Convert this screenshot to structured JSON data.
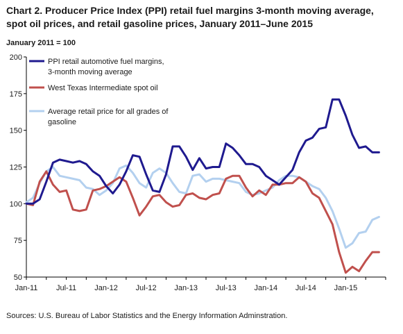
{
  "title": "Chart 2. Producer Price Index (PPI) retail fuel margins 3-month moving average, spot oil prices, and retail gasoline prices, January 2011–June 2015",
  "units_note": "January 2011 = 100",
  "source": "Sources:  U.S. Bureau of Labor Statistics and the Energy Information Adminstration.",
  "chart_data": {
    "type": "line",
    "title": "Chart 2. Producer Price Index (PPI) retail fuel margins 3-month moving average, spot oil prices, and retail gasoline prices, January 2011–June 2015",
    "ylabel": "January 2011 = 100",
    "xlabel": "",
    "ylim": [
      50,
      200
    ],
    "yticks": [
      50,
      75,
      100,
      125,
      150,
      175,
      200
    ],
    "x_tick_labels": [
      "Jan-11",
      "Jul-11",
      "Jan-12",
      "Jul-12",
      "Jan-13",
      "Jul-13",
      "Jan-14",
      "Jul-14",
      "Jan-15"
    ],
    "x": [
      "2011-01",
      "2011-02",
      "2011-03",
      "2011-04",
      "2011-05",
      "2011-06",
      "2011-07",
      "2011-08",
      "2011-09",
      "2011-10",
      "2011-11",
      "2011-12",
      "2012-01",
      "2012-02",
      "2012-03",
      "2012-04",
      "2012-05",
      "2012-06",
      "2012-07",
      "2012-08",
      "2012-09",
      "2012-10",
      "2012-11",
      "2012-12",
      "2013-01",
      "2013-02",
      "2013-03",
      "2013-04",
      "2013-05",
      "2013-06",
      "2013-07",
      "2013-08",
      "2013-09",
      "2013-10",
      "2013-11",
      "2013-12",
      "2014-01",
      "2014-02",
      "2014-03",
      "2014-04",
      "2014-05",
      "2014-06",
      "2014-07",
      "2014-08",
      "2014-09",
      "2014-10",
      "2014-11",
      "2014-12",
      "2015-01",
      "2015-02",
      "2015-03",
      "2015-04",
      "2015-05",
      "2015-06"
    ],
    "grid": false,
    "legend_position": "top-left",
    "series": [
      {
        "name": "PPI retail automotive fuel margins, 3-month moving average",
        "legend_lines": [
          "PPI retail automotive fuel margins,",
          "3-month moving average"
        ],
        "color": "#1f1a8f",
        "values": [
          100,
          100,
          103,
          115,
          128,
          130,
          129,
          128,
          129,
          127,
          122,
          119,
          112,
          107,
          113,
          122,
          133,
          132,
          120,
          109,
          108,
          120,
          139,
          139,
          132,
          123,
          131,
          124,
          125,
          125,
          141,
          138,
          133,
          127,
          127,
          125,
          119,
          116,
          113,
          118,
          123,
          135,
          143,
          145,
          151,
          152,
          171,
          171,
          160,
          147,
          138,
          139,
          135,
          135
        ]
      },
      {
        "name": "West Texas Intermediate spot oil",
        "legend_lines": [
          "West Texas Intermediate spot oil"
        ],
        "color": "#c0504d",
        "values": [
          100,
          99,
          115,
          122,
          113,
          108,
          109,
          96,
          95,
          96,
          109,
          110,
          112,
          115,
          118,
          115,
          104,
          92,
          98,
          105,
          106,
          101,
          98,
          99,
          106,
          107,
          104,
          103,
          106,
          107,
          117,
          119,
          119,
          111,
          105,
          109,
          106,
          113,
          113,
          114,
          114,
          118,
          115,
          107,
          104,
          95,
          86,
          67,
          53,
          57,
          54,
          61,
          67,
          67
        ]
      },
      {
        "name": "Average retail price for all grades of gasoline",
        "legend_lines": [
          "Average retail price for all grades of",
          "gasoline"
        ],
        "color": "#b3d0ef",
        "values": [
          101,
          104,
          114,
          122,
          125,
          119,
          118,
          117,
          116,
          111,
          110,
          106,
          109,
          114,
          124,
          126,
          121,
          114,
          111,
          121,
          124,
          121,
          114,
          108,
          107,
          119,
          120,
          115,
          117,
          117,
          116,
          115,
          114,
          108,
          106,
          107,
          109,
          111,
          116,
          119,
          119,
          118,
          115,
          112,
          110,
          104,
          95,
          83,
          70,
          73,
          80,
          81,
          89,
          91
        ]
      }
    ]
  }
}
